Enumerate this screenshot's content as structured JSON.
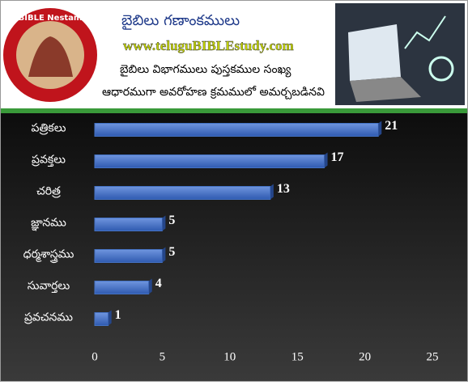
{
  "header": {
    "title": "బైబిలు గణాంకములు",
    "url": "www.teluguBIBLEstudy.com",
    "subtitle_1": "బైబిలు విభాగములు పుస్తకముల సంఖ్య",
    "subtitle_2": "ఆధారముగా అవరోహణ క్రమములో అమర్చబడినవి",
    "logo_text": "BIBLE Nestam"
  },
  "chart_data": {
    "type": "hbar",
    "categories": [
      "పత్రికలు",
      "ప్రవక్తలు",
      "చరిత్ర",
      "జ్ఞానము",
      "ధర్మశాస్త్రము",
      "సువార్తలు",
      "ప్రవచనము"
    ],
    "values": [
      21,
      17,
      13,
      5,
      5,
      4,
      1
    ],
    "color": "#4472c4",
    "xlim": [
      0,
      25
    ],
    "xticks": [
      0,
      5,
      10,
      15,
      20,
      25
    ]
  }
}
